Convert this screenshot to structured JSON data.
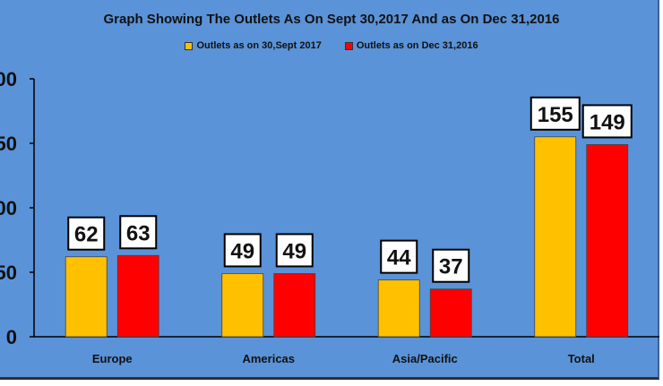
{
  "chart_data": {
    "type": "bar",
    "title": "Graph Showing The Outlets As On Sept 30,2017 And as On Dec 31,2016",
    "categories": [
      "Europe",
      "Americas",
      "Asia/Pacific",
      "Total"
    ],
    "series": [
      {
        "name": "Outlets as on 30,Sept 2017",
        "values": [
          62,
          49,
          44,
          155
        ],
        "color": "#ffc000"
      },
      {
        "name": "Outlets as on Dec 31,2016",
        "values": [
          63,
          49,
          37,
          149
        ],
        "color": "#ff0000"
      }
    ],
    "y_tick_labels": [
      "0",
      "50",
      "00",
      "50",
      "00"
    ],
    "ylim": [
      0,
      200
    ],
    "legend_position": "top-center",
    "grid": false
  }
}
